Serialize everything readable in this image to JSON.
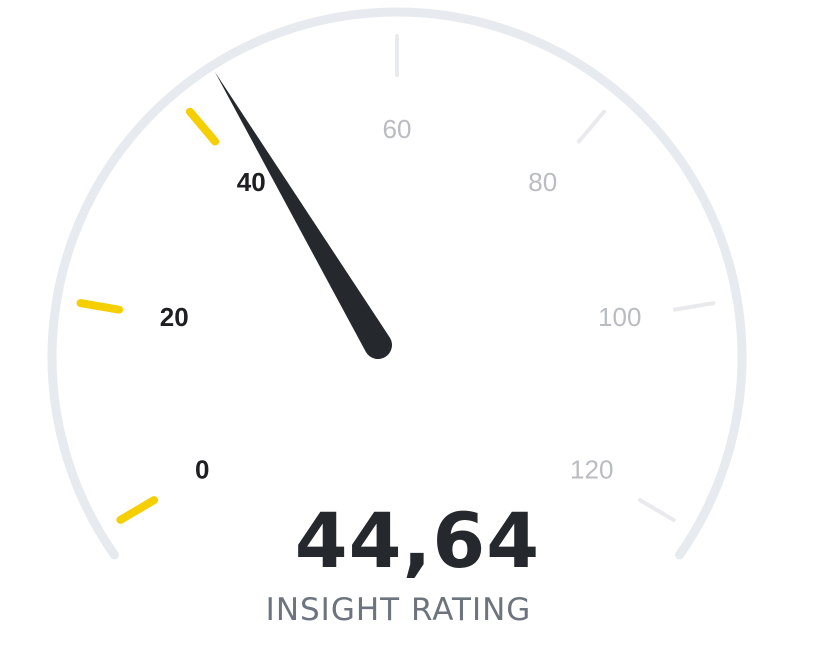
{
  "chart_data": {
    "type": "gauge",
    "value": 44.64,
    "value_display": "44,64",
    "label": "INSIGHT RATING",
    "range": [
      0,
      120
    ],
    "ticks": [
      {
        "value": 0,
        "label": "0"
      },
      {
        "value": 20,
        "label": "20"
      },
      {
        "value": 40,
        "label": "40"
      },
      {
        "value": 60,
        "label": "60"
      },
      {
        "value": 80,
        "label": "80"
      },
      {
        "value": 100,
        "label": "100"
      },
      {
        "value": 120,
        "label": "120"
      }
    ],
    "colors": {
      "active_tick": "#f5cf00",
      "inactive_tick": "#e8eaed",
      "arc": "#e7eaee",
      "needle": "#25282c",
      "active_label": "#1e1f22",
      "inactive_label": "#b9bcc1"
    }
  }
}
